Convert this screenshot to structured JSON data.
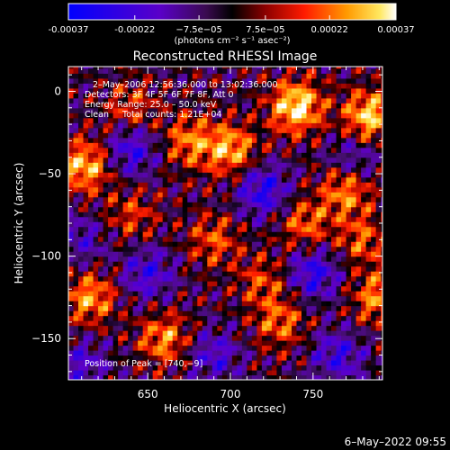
{
  "chart_data": {
    "type": "heatmap",
    "title": "Reconstructed RHESSI Image",
    "xlabel": "Heliocentric X (arcsec)",
    "ylabel": "Heliocentric Y (arcsec)",
    "xlim": [
      602,
      792
    ],
    "ylim": [
      -175,
      15
    ],
    "x_ticks": [
      650,
      700,
      750
    ],
    "y_ticks": [
      0,
      -50,
      -100,
      -150
    ],
    "colorbar": {
      "min": -0.00037,
      "max": 0.00037,
      "ticks": [
        "-0.00037",
        "-0.00022",
        "−7.5e−05",
        "7.5e−05",
        "0.00022",
        "0.00037"
      ],
      "tick_values": [
        -0.00037,
        -0.00022,
        -7.5e-05,
        7.5e-05,
        0.00022,
        0.00037
      ],
      "unit": "(photons cm⁻² s⁻¹ asec⁻²)"
    },
    "annotations": [
      "2–May–2006 12:56:36.000 to 13:02:36.000",
      "Detectors: 3F 4F 5F 6F 7F 8F, Att 0",
      "Energy Range: 25.0 – 50.0 keV",
      "Clean     Total counts: 1.21E+04"
    ],
    "peak_label": "Position of Peak = [740,−9]",
    "peak": [
      740,
      -9
    ],
    "hot_spots": [
      {
        "x": 740,
        "y": -9,
        "v": 0.00037
      },
      {
        "x": 784,
        "y": -15,
        "v": 0.00033
      },
      {
        "x": 700,
        "y": -35,
        "v": 0.00028
      },
      {
        "x": 612,
        "y": -45,
        "v": 0.0003
      },
      {
        "x": 675,
        "y": -30,
        "v": 0.00022
      },
      {
        "x": 770,
        "y": -60,
        "v": 0.00024
      },
      {
        "x": 745,
        "y": -80,
        "v": 0.0002
      },
      {
        "x": 690,
        "y": -90,
        "v": 0.00018
      },
      {
        "x": 640,
        "y": -75,
        "v": 0.00015
      },
      {
        "x": 615,
        "y": -125,
        "v": 0.00026
      },
      {
        "x": 660,
        "y": -150,
        "v": 0.00024
      },
      {
        "x": 730,
        "y": -140,
        "v": 0.0002
      },
      {
        "x": 790,
        "y": -125,
        "v": 0.00025
      },
      {
        "x": 780,
        "y": -90,
        "v": 0.00018
      },
      {
        "x": 640,
        "y": -10,
        "v": 0.00016
      },
      {
        "x": 720,
        "y": -115,
        "v": 0.00016
      }
    ],
    "cold_spots": [
      {
        "x": 640,
        "y": -35,
        "v": -0.00022
      },
      {
        "x": 720,
        "y": -60,
        "v": -0.00025
      },
      {
        "x": 750,
        "y": -110,
        "v": -0.00024
      },
      {
        "x": 650,
        "y": -110,
        "v": -0.0002
      },
      {
        "x": 690,
        "y": -160,
        "v": -0.00018
      },
      {
        "x": 765,
        "y": -160,
        "v": -0.0002
      },
      {
        "x": 610,
        "y": -165,
        "v": -0.00016
      },
      {
        "x": 775,
        "y": -40,
        "v": -0.00015
      },
      {
        "x": 610,
        "y": -90,
        "v": -0.00014
      }
    ]
  },
  "footer": {
    "timestamp": "6–May–2022 09:55"
  },
  "colors": {
    "background": "#000000",
    "foreground": "#ffffff"
  }
}
